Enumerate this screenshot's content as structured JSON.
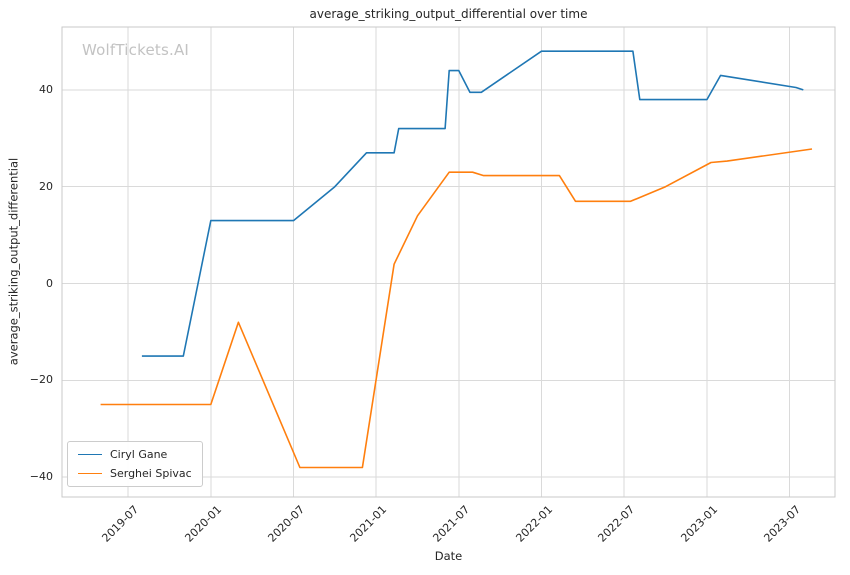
{
  "watermark": "WolfTickets.AI",
  "chart_data": {
    "type": "line",
    "title": "average_striking_output_differential over time",
    "xlabel": "Date",
    "ylabel": "average_striking_output_differential",
    "grid": true,
    "legend_position": "lower left",
    "x_tick_labels": [
      "2019-07",
      "2020-01",
      "2020-07",
      "2021-01",
      "2021-07",
      "2022-01",
      "2022-07",
      "2023-01",
      "2023-07"
    ],
    "y_ticks": [
      -40,
      -20,
      0,
      20,
      40
    ],
    "ylim": [
      -44.1,
      53.0
    ],
    "x_range_months_since_2019_01": [
      1.2,
      57.3
    ],
    "series": [
      {
        "name": "Ciryl Gane",
        "color": "#1f77b4",
        "points": [
          [
            "2019-08-01",
            -15
          ],
          [
            "2019-11-01",
            -15
          ],
          [
            "2020-01-01",
            13
          ],
          [
            "2020-07-01",
            13
          ],
          [
            "2020-10-01",
            20
          ],
          [
            "2020-12-10",
            27
          ],
          [
            "2021-02-10",
            27
          ],
          [
            "2021-02-20",
            32
          ],
          [
            "2021-06-01",
            32
          ],
          [
            "2021-06-10",
            44
          ],
          [
            "2021-07-01",
            44
          ],
          [
            "2021-07-25",
            39.5
          ],
          [
            "2021-08-20",
            39.5
          ],
          [
            "2022-01-01",
            48
          ],
          [
            "2022-07-20",
            48
          ],
          [
            "2022-08-05",
            38
          ],
          [
            "2023-01-01",
            38
          ],
          [
            "2023-02-01",
            43
          ],
          [
            "2023-07-15",
            40.5
          ],
          [
            "2023-08-01",
            40
          ]
        ]
      },
      {
        "name": "Serghei Spivac",
        "color": "#ff7f0e",
        "points": [
          [
            "2019-05-01",
            -25
          ],
          [
            "2020-01-01",
            -25
          ],
          [
            "2020-03-01",
            -8
          ],
          [
            "2020-07-15",
            -38
          ],
          [
            "2020-12-01",
            -38
          ],
          [
            "2021-02-10",
            4
          ],
          [
            "2021-04-01",
            14
          ],
          [
            "2021-06-10",
            23
          ],
          [
            "2021-08-01",
            23
          ],
          [
            "2021-08-25",
            22.3
          ],
          [
            "2022-02-10",
            22.3
          ],
          [
            "2022-03-15",
            17
          ],
          [
            "2022-07-15",
            17
          ],
          [
            "2022-10-01",
            20
          ],
          [
            "2023-01-10",
            25
          ],
          [
            "2023-02-15",
            25.3
          ],
          [
            "2023-08-20",
            27.8
          ]
        ]
      }
    ]
  }
}
